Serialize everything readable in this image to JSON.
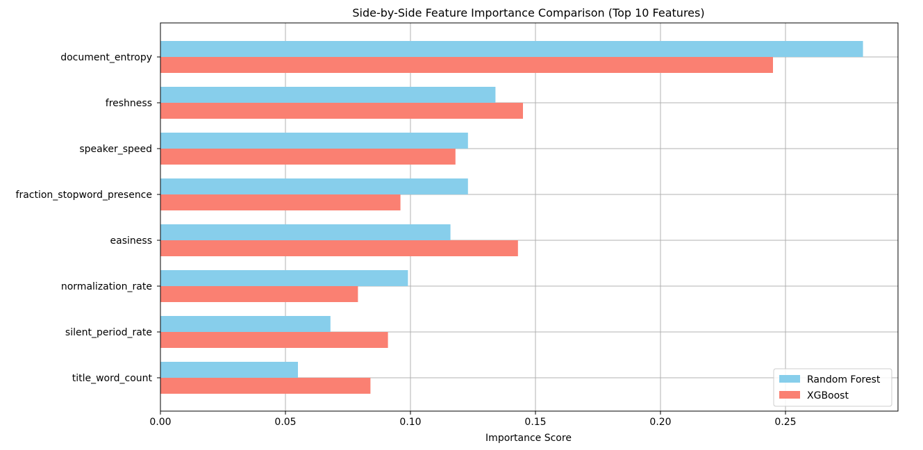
{
  "chart_data": {
    "type": "bar",
    "orientation": "horizontal",
    "title": "Side-by-Side Feature Importance Comparison (Top 10 Features)",
    "xlabel": "Importance Score",
    "ylabel": "",
    "xlim": [
      0,
      0.295
    ],
    "xticks": [
      "0.00",
      "0.05",
      "0.10",
      "0.15",
      "0.20",
      "0.25"
    ],
    "xtick_values": [
      0,
      0.05,
      0.1,
      0.15,
      0.2,
      0.25
    ],
    "grid": true,
    "legend_position": "bottom-right",
    "categories": [
      "document_entropy",
      "freshness",
      "speaker_speed",
      "fraction_stopword_presence",
      "easiness",
      "normalization_rate",
      "silent_period_rate",
      "title_word_count"
    ],
    "series": [
      {
        "name": "Random Forest",
        "color": "#87ceeb",
        "values": [
          0.281,
          0.134,
          0.123,
          0.123,
          0.116,
          0.099,
          0.068,
          0.055
        ]
      },
      {
        "name": "XGBoost",
        "color": "#fa8072",
        "values": [
          0.245,
          0.145,
          0.118,
          0.096,
          0.143,
          0.079,
          0.091,
          0.084
        ]
      }
    ]
  }
}
